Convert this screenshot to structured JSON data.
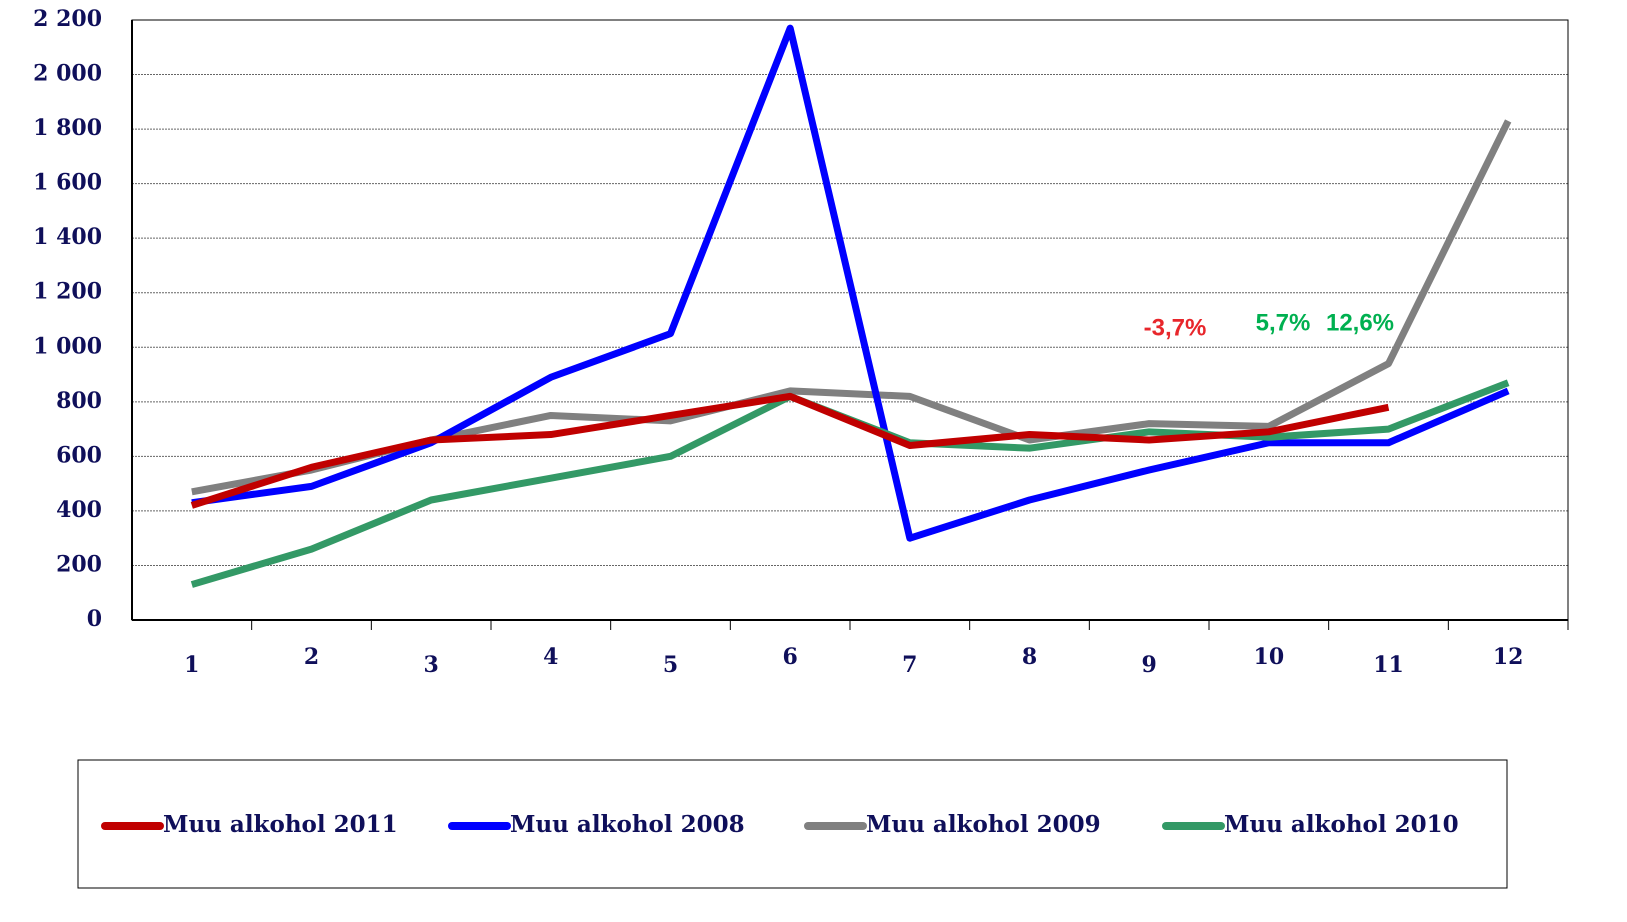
{
  "chart_data": {
    "type": "line",
    "categories": [
      "1",
      "2",
      "3",
      "4",
      "5",
      "6",
      "7",
      "8",
      "9",
      "10",
      "11",
      "12"
    ],
    "series": [
      {
        "name": "Muu alkohol 2011",
        "color": "#c00000",
        "values": [
          420,
          560,
          660,
          680,
          750,
          820,
          640,
          680,
          660,
          690,
          780,
          null
        ]
      },
      {
        "name": "Muu alkohol 2008",
        "color": "#0000ff",
        "values": [
          430,
          490,
          650,
          890,
          1050,
          2170,
          300,
          440,
          550,
          650,
          650,
          840
        ]
      },
      {
        "name": "Muu alkohol 2009",
        "color": "#808080",
        "values": [
          470,
          550,
          660,
          750,
          730,
          840,
          820,
          660,
          720,
          710,
          940,
          1830
        ]
      },
      {
        "name": "Muu alkohol 2010",
        "color": "#339966",
        "values": [
          130,
          260,
          440,
          520,
          600,
          820,
          650,
          630,
          690,
          670,
          700,
          870
        ]
      }
    ],
    "ylim": [
      0,
      2200
    ],
    "yticks": [
      0,
      200,
      400,
      600,
      800,
      {
        "value": 1000,
        "label": "1 000"
      },
      {
        "value": 1200,
        "label": "1 200"
      },
      {
        "value": 1400,
        "label": "1 400"
      },
      {
        "value": 1600,
        "label": "1 600"
      },
      {
        "value": 1800,
        "label": "1 800"
      },
      {
        "value": 2000,
        "label": "2 000"
      },
      {
        "value": 2200,
        "label": "2 200"
      }
    ],
    "grid": true,
    "annotations": [
      {
        "text": "-3,7%",
        "color": "#e8262b"
      },
      {
        "text": "5,7%",
        "color": "#00b050"
      },
      {
        "text": "12,6%",
        "color": "#00b050"
      }
    ]
  }
}
